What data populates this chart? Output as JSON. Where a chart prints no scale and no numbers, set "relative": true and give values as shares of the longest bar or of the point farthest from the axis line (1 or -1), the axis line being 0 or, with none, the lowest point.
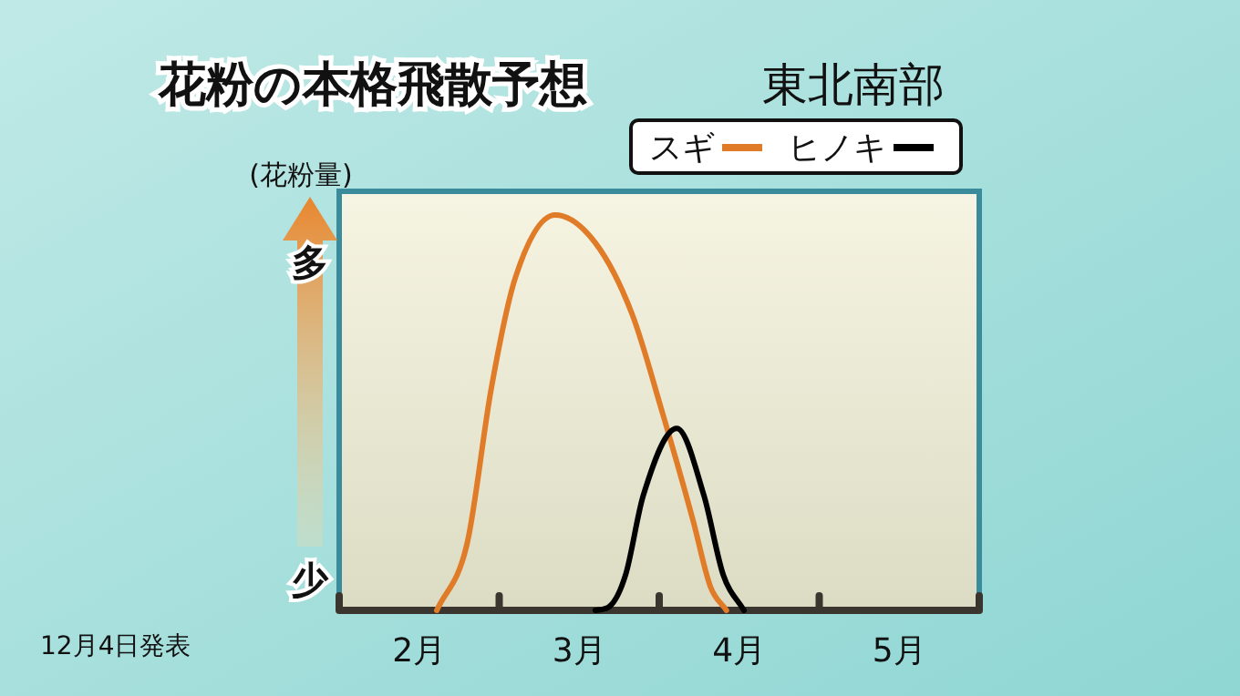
{
  "chart_data": {
    "type": "line",
    "relative": true,
    "title": "花粉の本格飛散予想",
    "subtitle": "東北南部",
    "ylabel": "(花粉量)",
    "annotations": [
      "多",
      "少",
      "12月4日発表"
    ],
    "xlim": [
      2,
      6
    ],
    "xticks": [
      {
        "value": 2,
        "label": null
      },
      {
        "value": 2.5,
        "label": "2月"
      },
      {
        "value": 3,
        "label": null
      },
      {
        "value": 3.5,
        "label": "3月"
      },
      {
        "value": 4,
        "label": null
      },
      {
        "value": 4.5,
        "label": "4月"
      },
      {
        "value": 5,
        "label": null
      },
      {
        "value": 5.5,
        "label": "5月"
      },
      {
        "value": 6,
        "label": null
      }
    ],
    "legend": "top right",
    "grid": false,
    "marker": "none",
    "line_style": "solid",
    "series": [
      {
        "name": "スギ",
        "color": "#e07b28",
        "x": [
          2.61,
          2.8,
          2.95,
          3.1,
          3.35,
          3.6,
          3.83,
          4.02,
          4.21,
          4.32,
          4.42
        ],
        "values": [
          0,
          0.17,
          0.56,
          0.84,
          1,
          0.93,
          0.75,
          0.5,
          0.23,
          0.06,
          0
        ]
      },
      {
        "name": "ヒノキ",
        "color": "#000000",
        "x": [
          3.6,
          3.69,
          3.79,
          3.9,
          4.11,
          4.28,
          4.4,
          4.53
        ],
        "values": [
          0,
          0.01,
          0.09,
          0.29,
          0.46,
          0.29,
          0.09,
          0
        ]
      }
    ]
  }
}
